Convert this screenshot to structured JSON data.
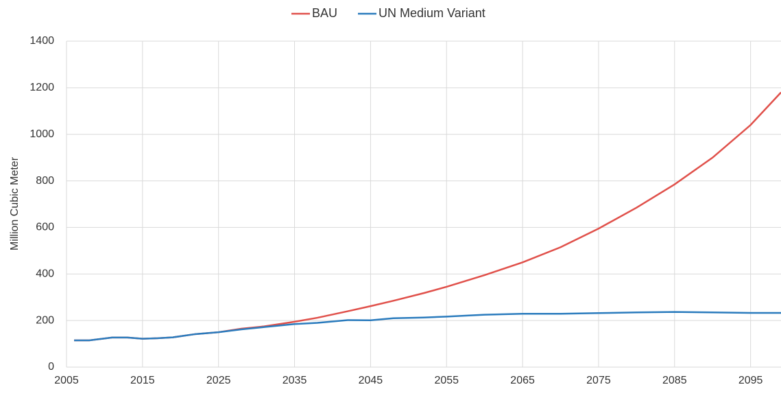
{
  "chart_data": {
    "type": "line",
    "y_label": "Million Cubic Meter",
    "x": [
      2006,
      2008,
      2011,
      2013,
      2015,
      2017,
      2019,
      2022,
      2025,
      2028,
      2031,
      2035,
      2038,
      2042,
      2045,
      2048,
      2052,
      2055,
      2060,
      2065,
      2070,
      2075,
      2080,
      2085,
      2090,
      2095,
      2099
    ],
    "series": [
      {
        "name": "BAU",
        "color": "#e0504a",
        "values": [
          115,
          115,
          127,
          127,
          122,
          124,
          128,
          142,
          150,
          165,
          175,
          195,
          212,
          240,
          262,
          285,
          318,
          345,
          395,
          450,
          515,
          595,
          685,
          785,
          900,
          1040,
          1180
        ]
      },
      {
        "name": "UN Medium Variant",
        "color": "#2a7bbd",
        "values": [
          115,
          115,
          127,
          127,
          122,
          124,
          128,
          142,
          150,
          162,
          172,
          185,
          190,
          202,
          201,
          210,
          213,
          217,
          225,
          229,
          229,
          232,
          235,
          237,
          235,
          233,
          233
        ]
      }
    ],
    "xlim": [
      2005,
      2099
    ],
    "xticks": [
      2005,
      2015,
      2025,
      2035,
      2045,
      2055,
      2065,
      2075,
      2085,
      2095
    ],
    "ylim": [
      0,
      1400
    ],
    "yticks": [
      0,
      200,
      400,
      600,
      800,
      1000,
      1200,
      1400
    ],
    "grid": true,
    "legend": "top"
  }
}
